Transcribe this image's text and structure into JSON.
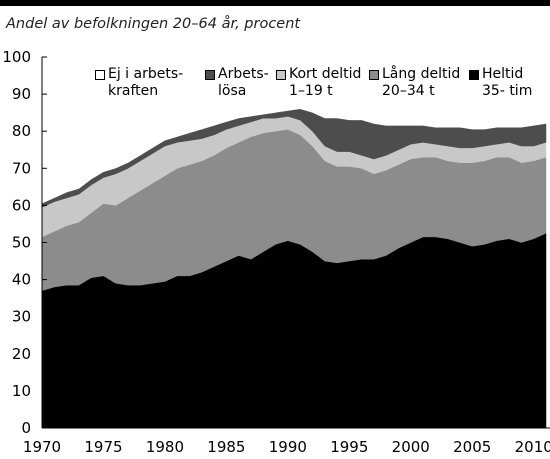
{
  "chart_data": {
    "type": "stacked_area",
    "subtitle": "Andel av befolkningen 20–64 år, procent",
    "x": [
      1970,
      1971,
      1972,
      1973,
      1974,
      1975,
      1976,
      1977,
      1978,
      1979,
      1980,
      1981,
      1982,
      1983,
      1984,
      1985,
      1986,
      1987,
      1988,
      1989,
      1990,
      1991,
      1992,
      1993,
      1994,
      1995,
      1996,
      1997,
      1998,
      1999,
      2000,
      2001,
      2002,
      2003,
      2004,
      2005,
      2006,
      2007,
      2008,
      2009,
      2010,
      2011
    ],
    "xlim": [
      1970,
      2011
    ],
    "xticks": [
      1970,
      1975,
      1980,
      1985,
      1990,
      1995,
      2000,
      2005,
      2010
    ],
    "ylim": [
      0,
      100
    ],
    "yticks": [
      0,
      10,
      20,
      30,
      40,
      50,
      60,
      70,
      80,
      90,
      100
    ],
    "series": [
      {
        "name": "Ej i arbets-\nkraften",
        "color": "#ffffff",
        "values": [
          39.5,
          38,
          36.5,
          35.5,
          33,
          31,
          30,
          28.5,
          26.5,
          24.5,
          22.5,
          21.5,
          20.5,
          19.5,
          18.5,
          17.5,
          16.5,
          16,
          15.5,
          15,
          14.5,
          14,
          15,
          16.5,
          16.5,
          17,
          17,
          18,
          18.5,
          18.5,
          18.5,
          18.5,
          19,
          19,
          19,
          19.5,
          19.5,
          19,
          19,
          19,
          18.5,
          18
        ]
      },
      {
        "name": "Arbets-\nlösa",
        "color": "#4d4d4d",
        "values": [
          1,
          1,
          1.5,
          1.5,
          1.5,
          1.5,
          1.5,
          1.5,
          1.5,
          1.5,
          1.5,
          1.5,
          2,
          2.5,
          2.5,
          2,
          2,
          1.5,
          1,
          1.5,
          1.5,
          3,
          5,
          7.5,
          9,
          8.5,
          9.5,
          9.5,
          8,
          6.5,
          5,
          4.5,
          4.5,
          5,
          5.5,
          5,
          4.5,
          4.5,
          4,
          5,
          5.5,
          5
        ]
      },
      {
        "name": "Kort deltid\n1–19 t",
        "color": "#c8c8c8",
        "values": [
          8,
          8,
          7.5,
          7.5,
          7.5,
          7,
          8.5,
          8,
          8,
          8,
          8,
          7,
          6.5,
          6,
          5.5,
          5,
          4.5,
          4,
          4,
          3.5,
          3.5,
          4,
          4,
          4,
          4,
          4,
          3.5,
          4,
          4,
          4,
          4,
          4,
          3.5,
          4,
          4,
          4,
          4,
          3.5,
          4,
          4.5,
          4,
          4
        ]
      },
      {
        "name": "Lång deltid\n20–34 t",
        "color": "#8c8c8c",
        "values": [
          14.5,
          15,
          16,
          17,
          17.5,
          19.5,
          21,
          23.5,
          25.5,
          27,
          28.5,
          29,
          30,
          30,
          30,
          30.5,
          30.5,
          33,
          32,
          30.5,
          30,
          29.5,
          28.5,
          27,
          26,
          25.5,
          24.5,
          23,
          23,
          22.5,
          22.5,
          21.5,
          21.5,
          21,
          21.5,
          22.5,
          22.5,
          22.5,
          22,
          21.5,
          21,
          20.5
        ]
      },
      {
        "name": "Heltid\n35- tim",
        "color": "#000000",
        "values": [
          37,
          38,
          38.5,
          38.5,
          40.5,
          41,
          39,
          38.5,
          38.5,
          39,
          39.5,
          41,
          41,
          42,
          43.5,
          45,
          46.5,
          45.5,
          47.5,
          49.5,
          50.5,
          49.5,
          47.5,
          45,
          44.5,
          45,
          45.5,
          45.5,
          46.5,
          48.5,
          50,
          51.5,
          51.5,
          51,
          50,
          49,
          49.5,
          50.5,
          51,
          50,
          51,
          52.5
        ]
      }
    ]
  }
}
